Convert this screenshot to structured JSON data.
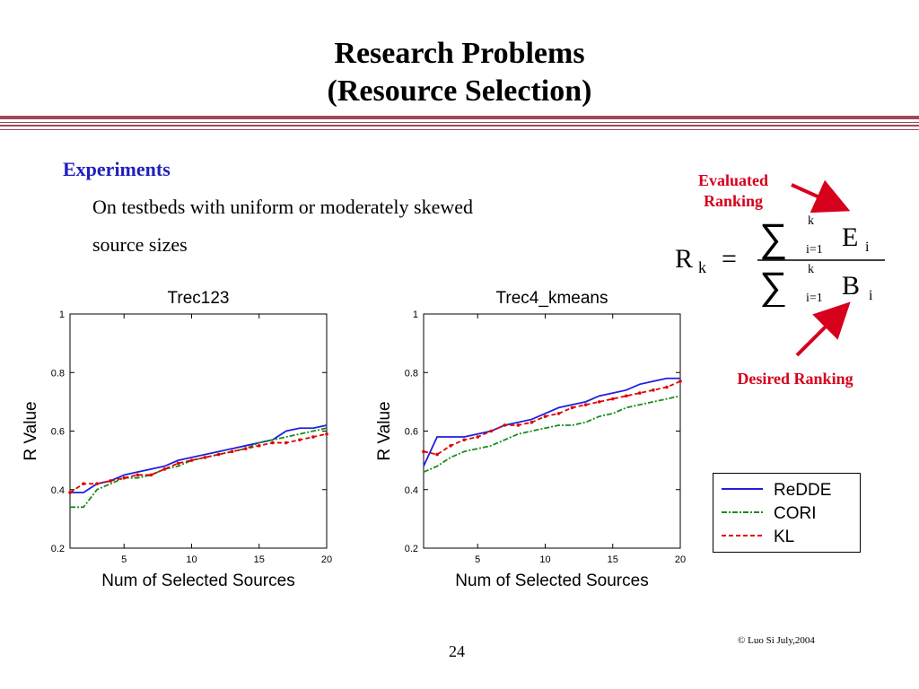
{
  "title": {
    "line1": "Research Problems",
    "line2": "(Resource Selection)"
  },
  "content": {
    "heading": "Experiments",
    "line1": "On testbeds with uniform or moderately skewed",
    "line2": "source sizes"
  },
  "annotations": {
    "evaluated_line1": "Evaluated",
    "evaluated_line2": "Ranking",
    "desired": "Desired Ranking",
    "formula": {
      "lhs": "R",
      "lhs_sub": "k",
      "eq": "=",
      "num_sup": "k",
      "num_sub": "i=1",
      "num_var": "E",
      "num_var_sub": "i",
      "den_sup": "k",
      "den_sub": "i=1",
      "den_var": "B",
      "den_var_sub": "i"
    }
  },
  "colors": {
    "accent_rule": "#9c4a5a",
    "heading": "#1f1fbf",
    "annotation": "#d6001c"
  },
  "chart_data": [
    {
      "type": "line",
      "title": "Trec123",
      "xlabel": "Num of Selected Sources",
      "ylabel": "R Value",
      "xlim": [
        1,
        20
      ],
      "ylim": [
        0.2,
        1
      ],
      "xticks": [
        5,
        10,
        15,
        20
      ],
      "yticks": [
        0.2,
        0.4,
        0.6,
        0.8,
        1
      ],
      "ytick_labels": [
        "0.2",
        "0.4",
        "0.6",
        "0.8",
        "1"
      ],
      "x": [
        1,
        2,
        3,
        4,
        5,
        6,
        7,
        8,
        9,
        10,
        11,
        12,
        13,
        14,
        15,
        16,
        17,
        18,
        19,
        20
      ],
      "series": [
        {
          "name": "ReDDE",
          "color": "#1f1fdc",
          "dash": "",
          "marker": false,
          "values": [
            0.39,
            0.39,
            0.42,
            0.43,
            0.45,
            0.46,
            0.47,
            0.48,
            0.5,
            0.51,
            0.52,
            0.53,
            0.54,
            0.55,
            0.56,
            0.57,
            0.6,
            0.61,
            0.61,
            0.62
          ]
        },
        {
          "name": "CORI",
          "color": "#1a8c1a",
          "dash": "6,2,2,2",
          "marker": false,
          "values": [
            0.34,
            0.34,
            0.4,
            0.42,
            0.44,
            0.44,
            0.45,
            0.47,
            0.48,
            0.5,
            0.51,
            0.52,
            0.53,
            0.54,
            0.56,
            0.57,
            0.58,
            0.59,
            0.6,
            0.61
          ]
        },
        {
          "name": "KL",
          "color": "#e00000",
          "dash": "5,3",
          "marker": true,
          "values": [
            0.39,
            0.42,
            0.42,
            0.43,
            0.44,
            0.45,
            0.45,
            0.47,
            0.49,
            0.5,
            0.51,
            0.52,
            0.53,
            0.54,
            0.55,
            0.56,
            0.56,
            0.57,
            0.58,
            0.59
          ]
        }
      ]
    },
    {
      "type": "line",
      "title": "Trec4_kmeans",
      "xlabel": "Num of Selected Sources",
      "ylabel": "R Value",
      "xlim": [
        1,
        20
      ],
      "ylim": [
        0.2,
        1
      ],
      "xticks": [
        5,
        10,
        15,
        20
      ],
      "yticks": [
        0.2,
        0.4,
        0.6,
        0.8,
        1
      ],
      "ytick_labels": [
        "0.2",
        "0.4",
        "0.6",
        "0.8",
        "1"
      ],
      "x": [
        1,
        2,
        3,
        4,
        5,
        6,
        7,
        8,
        9,
        10,
        11,
        12,
        13,
        14,
        15,
        16,
        17,
        18,
        19,
        20
      ],
      "series": [
        {
          "name": "ReDDE",
          "color": "#1f1fdc",
          "dash": "",
          "marker": false,
          "values": [
            0.48,
            0.58,
            0.58,
            0.58,
            0.59,
            0.6,
            0.62,
            0.63,
            0.64,
            0.66,
            0.68,
            0.69,
            0.7,
            0.72,
            0.73,
            0.74,
            0.76,
            0.77,
            0.78,
            0.78
          ]
        },
        {
          "name": "CORI",
          "color": "#1a8c1a",
          "dash": "6,2,2,2",
          "marker": false,
          "values": [
            0.46,
            0.48,
            0.51,
            0.53,
            0.54,
            0.55,
            0.57,
            0.59,
            0.6,
            0.61,
            0.62,
            0.62,
            0.63,
            0.65,
            0.66,
            0.68,
            0.69,
            0.7,
            0.71,
            0.72
          ]
        },
        {
          "name": "KL",
          "color": "#e00000",
          "dash": "5,3",
          "marker": true,
          "values": [
            0.53,
            0.52,
            0.55,
            0.57,
            0.58,
            0.6,
            0.62,
            0.62,
            0.63,
            0.65,
            0.66,
            0.68,
            0.69,
            0.7,
            0.71,
            0.72,
            0.73,
            0.74,
            0.75,
            0.77
          ]
        }
      ]
    }
  ],
  "legend": [
    {
      "label": "ReDDE",
      "color": "#1f1fdc",
      "dash": ""
    },
    {
      "label": "CORI",
      "color": "#1a8c1a",
      "dash": "6,2,2,2"
    },
    {
      "label": "KL",
      "color": "#e00000",
      "dash": "5,3"
    }
  ],
  "footer": {
    "copyright": "© Luo Si July,2004",
    "page": "24"
  }
}
